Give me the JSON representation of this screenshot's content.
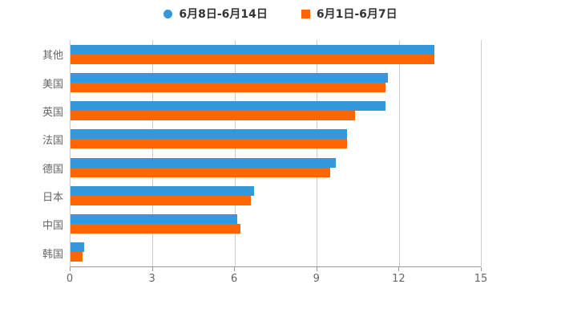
{
  "chart_data": {
    "type": "bar",
    "orientation": "horizontal",
    "title": "",
    "xlabel": "",
    "ylabel": "",
    "categories": [
      "其他",
      "美国",
      "英国",
      "法国",
      "德国",
      "日本",
      "中国",
      "韩国"
    ],
    "series": [
      {
        "name": "6月8日-6月14日",
        "color": "#3498db",
        "marker": "circle",
        "values": [
          13.3,
          11.6,
          11.5,
          10.1,
          9.7,
          6.7,
          6.1,
          0.5
        ]
      },
      {
        "name": "6月1日-6月7日",
        "color": "#ff6600",
        "marker": "square",
        "values": [
          13.3,
          11.5,
          10.4,
          10.1,
          9.5,
          6.6,
          6.2,
          0.45
        ]
      }
    ],
    "xlim": [
      0,
      15
    ],
    "xticks": [
      0,
      3,
      6,
      9,
      12,
      15
    ],
    "grid": true,
    "legend_position": "top"
  },
  "colors": {
    "background": "#ffffff",
    "gridline": "#cccccc",
    "axis_line": "#999999",
    "tick_label": "#666666",
    "category_label": "#666666",
    "legend_text": "#333333"
  }
}
